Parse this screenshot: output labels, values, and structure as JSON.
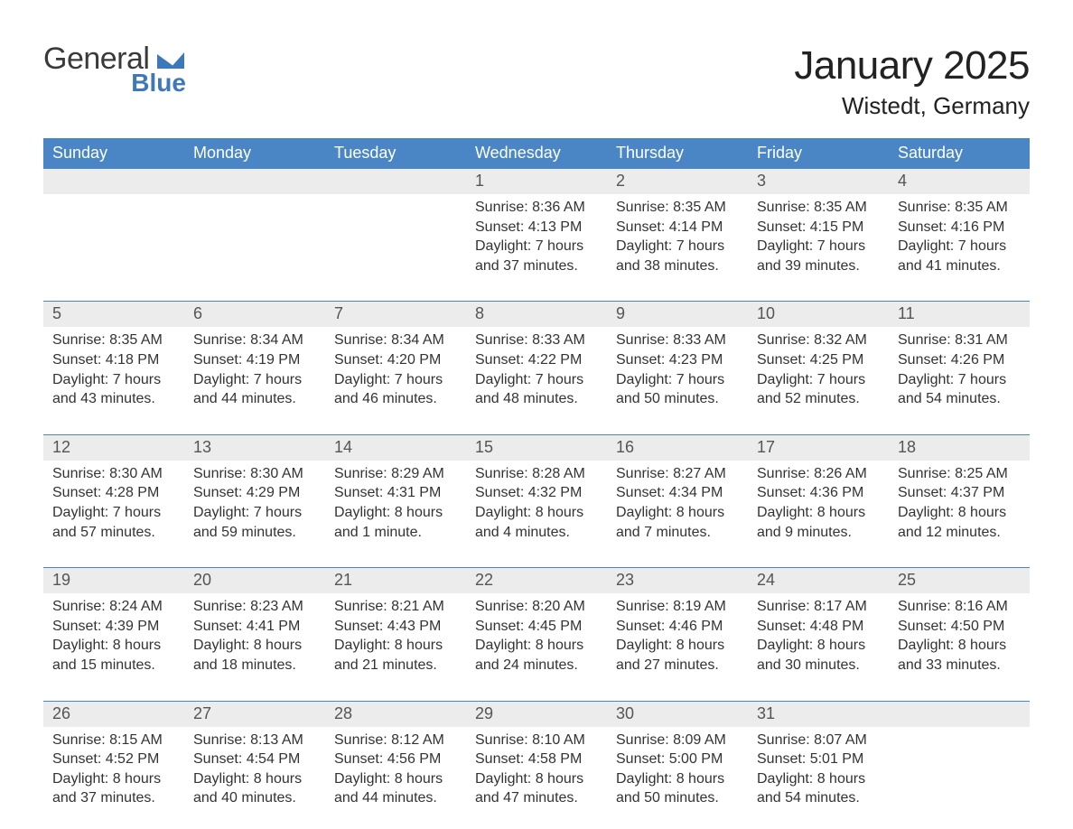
{
  "brand": {
    "word1": "General",
    "word2": "Blue",
    "word1_color": "#3a3a3a",
    "word2_color": "#3d79b8",
    "mark_color": "#3d79b8"
  },
  "header": {
    "title": "January 2025",
    "location": "Wistedt, Germany"
  },
  "colors": {
    "header_bg": "#4a86c5",
    "header_text": "#ffffff",
    "daynum_bg": "#ececec",
    "daynum_text": "#555555",
    "week_rule": "#4a86c5",
    "body_text": "#333333",
    "page_bg": "#ffffff"
  },
  "typography": {
    "title_fontsize": 44,
    "location_fontsize": 26,
    "dayheader_fontsize": 18,
    "daynum_fontsize": 18,
    "body_fontsize": 16,
    "font_family": "Arial"
  },
  "calendar": {
    "day_names": [
      "Sunday",
      "Monday",
      "Tuesday",
      "Wednesday",
      "Thursday",
      "Friday",
      "Saturday"
    ],
    "weeks": [
      [
        null,
        null,
        null,
        {
          "n": "1",
          "sunrise": "Sunrise: 8:36 AM",
          "sunset": "Sunset: 4:13 PM",
          "daylight": "Daylight: 7 hours and 37 minutes."
        },
        {
          "n": "2",
          "sunrise": "Sunrise: 8:35 AM",
          "sunset": "Sunset: 4:14 PM",
          "daylight": "Daylight: 7 hours and 38 minutes."
        },
        {
          "n": "3",
          "sunrise": "Sunrise: 8:35 AM",
          "sunset": "Sunset: 4:15 PM",
          "daylight": "Daylight: 7 hours and 39 minutes."
        },
        {
          "n": "4",
          "sunrise": "Sunrise: 8:35 AM",
          "sunset": "Sunset: 4:16 PM",
          "daylight": "Daylight: 7 hours and 41 minutes."
        }
      ],
      [
        {
          "n": "5",
          "sunrise": "Sunrise: 8:35 AM",
          "sunset": "Sunset: 4:18 PM",
          "daylight": "Daylight: 7 hours and 43 minutes."
        },
        {
          "n": "6",
          "sunrise": "Sunrise: 8:34 AM",
          "sunset": "Sunset: 4:19 PM",
          "daylight": "Daylight: 7 hours and 44 minutes."
        },
        {
          "n": "7",
          "sunrise": "Sunrise: 8:34 AM",
          "sunset": "Sunset: 4:20 PM",
          "daylight": "Daylight: 7 hours and 46 minutes."
        },
        {
          "n": "8",
          "sunrise": "Sunrise: 8:33 AM",
          "sunset": "Sunset: 4:22 PM",
          "daylight": "Daylight: 7 hours and 48 minutes."
        },
        {
          "n": "9",
          "sunrise": "Sunrise: 8:33 AM",
          "sunset": "Sunset: 4:23 PM",
          "daylight": "Daylight: 7 hours and 50 minutes."
        },
        {
          "n": "10",
          "sunrise": "Sunrise: 8:32 AM",
          "sunset": "Sunset: 4:25 PM",
          "daylight": "Daylight: 7 hours and 52 minutes."
        },
        {
          "n": "11",
          "sunrise": "Sunrise: 8:31 AM",
          "sunset": "Sunset: 4:26 PM",
          "daylight": "Daylight: 7 hours and 54 minutes."
        }
      ],
      [
        {
          "n": "12",
          "sunrise": "Sunrise: 8:30 AM",
          "sunset": "Sunset: 4:28 PM",
          "daylight": "Daylight: 7 hours and 57 minutes."
        },
        {
          "n": "13",
          "sunrise": "Sunrise: 8:30 AM",
          "sunset": "Sunset: 4:29 PM",
          "daylight": "Daylight: 7 hours and 59 minutes."
        },
        {
          "n": "14",
          "sunrise": "Sunrise: 8:29 AM",
          "sunset": "Sunset: 4:31 PM",
          "daylight": "Daylight: 8 hours and 1 minute."
        },
        {
          "n": "15",
          "sunrise": "Sunrise: 8:28 AM",
          "sunset": "Sunset: 4:32 PM",
          "daylight": "Daylight: 8 hours and 4 minutes."
        },
        {
          "n": "16",
          "sunrise": "Sunrise: 8:27 AM",
          "sunset": "Sunset: 4:34 PM",
          "daylight": "Daylight: 8 hours and 7 minutes."
        },
        {
          "n": "17",
          "sunrise": "Sunrise: 8:26 AM",
          "sunset": "Sunset: 4:36 PM",
          "daylight": "Daylight: 8 hours and 9 minutes."
        },
        {
          "n": "18",
          "sunrise": "Sunrise: 8:25 AM",
          "sunset": "Sunset: 4:37 PM",
          "daylight": "Daylight: 8 hours and 12 minutes."
        }
      ],
      [
        {
          "n": "19",
          "sunrise": "Sunrise: 8:24 AM",
          "sunset": "Sunset: 4:39 PM",
          "daylight": "Daylight: 8 hours and 15 minutes."
        },
        {
          "n": "20",
          "sunrise": "Sunrise: 8:23 AM",
          "sunset": "Sunset: 4:41 PM",
          "daylight": "Daylight: 8 hours and 18 minutes."
        },
        {
          "n": "21",
          "sunrise": "Sunrise: 8:21 AM",
          "sunset": "Sunset: 4:43 PM",
          "daylight": "Daylight: 8 hours and 21 minutes."
        },
        {
          "n": "22",
          "sunrise": "Sunrise: 8:20 AM",
          "sunset": "Sunset: 4:45 PM",
          "daylight": "Daylight: 8 hours and 24 minutes."
        },
        {
          "n": "23",
          "sunrise": "Sunrise: 8:19 AM",
          "sunset": "Sunset: 4:46 PM",
          "daylight": "Daylight: 8 hours and 27 minutes."
        },
        {
          "n": "24",
          "sunrise": "Sunrise: 8:17 AM",
          "sunset": "Sunset: 4:48 PM",
          "daylight": "Daylight: 8 hours and 30 minutes."
        },
        {
          "n": "25",
          "sunrise": "Sunrise: 8:16 AM",
          "sunset": "Sunset: 4:50 PM",
          "daylight": "Daylight: 8 hours and 33 minutes."
        }
      ],
      [
        {
          "n": "26",
          "sunrise": "Sunrise: 8:15 AM",
          "sunset": "Sunset: 4:52 PM",
          "daylight": "Daylight: 8 hours and 37 minutes."
        },
        {
          "n": "27",
          "sunrise": "Sunrise: 8:13 AM",
          "sunset": "Sunset: 4:54 PM",
          "daylight": "Daylight: 8 hours and 40 minutes."
        },
        {
          "n": "28",
          "sunrise": "Sunrise: 8:12 AM",
          "sunset": "Sunset: 4:56 PM",
          "daylight": "Daylight: 8 hours and 44 minutes."
        },
        {
          "n": "29",
          "sunrise": "Sunrise: 8:10 AM",
          "sunset": "Sunset: 4:58 PM",
          "daylight": "Daylight: 8 hours and 47 minutes."
        },
        {
          "n": "30",
          "sunrise": "Sunrise: 8:09 AM",
          "sunset": "Sunset: 5:00 PM",
          "daylight": "Daylight: 8 hours and 50 minutes."
        },
        {
          "n": "31",
          "sunrise": "Sunrise: 8:07 AM",
          "sunset": "Sunset: 5:01 PM",
          "daylight": "Daylight: 8 hours and 54 minutes."
        },
        null
      ]
    ]
  }
}
